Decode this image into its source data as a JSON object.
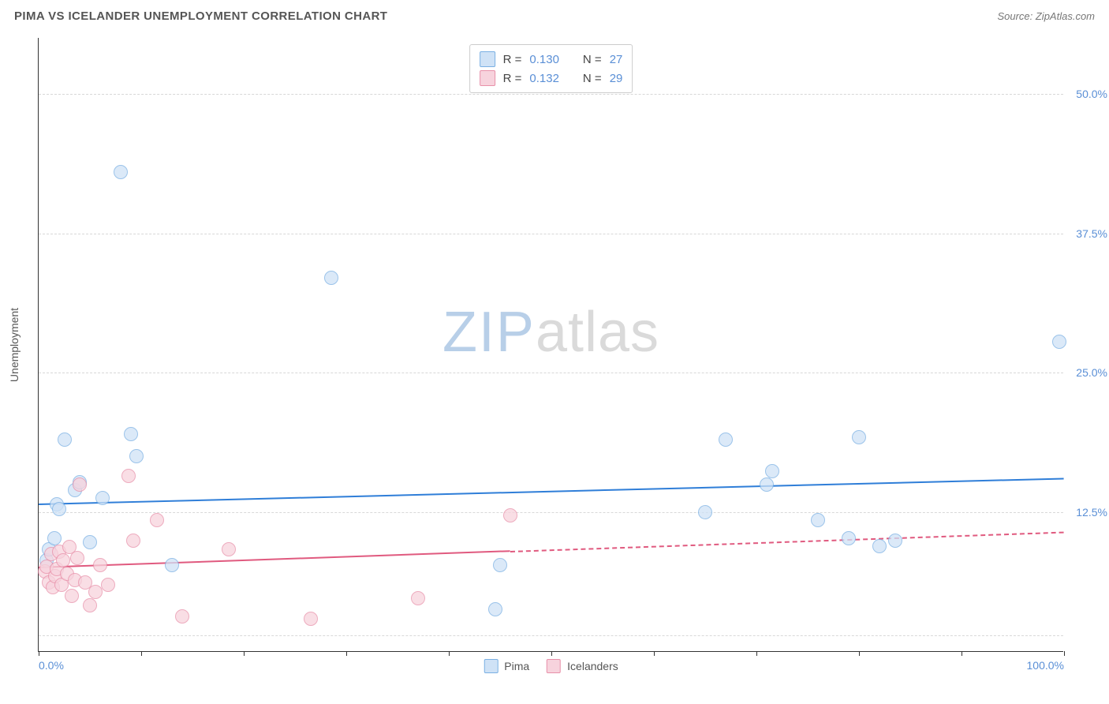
{
  "header": {
    "title": "PIMA VS ICELANDER UNEMPLOYMENT CORRELATION CHART",
    "source": "Source: ZipAtlas.com"
  },
  "watermark": {
    "zip": "ZIP",
    "atlas": "atlas"
  },
  "chart": {
    "type": "scatter",
    "ylabel": "Unemployment",
    "background_color": "#ffffff",
    "grid_color": "#d8d8d8",
    "axis_color": "#333333",
    "label_color": "#5a8fd6",
    "xlim": [
      0,
      100
    ],
    "ylim": [
      0,
      55
    ],
    "xticks": [
      0,
      10,
      20,
      30,
      40,
      50,
      60,
      70,
      80,
      90,
      100
    ],
    "xtick_labels": {
      "0": "0.0%",
      "100": "100.0%"
    },
    "yticks": [
      12.5,
      25.0,
      37.5,
      50.0
    ],
    "ytick_labels": [
      "12.5%",
      "25.0%",
      "37.5%",
      "50.0%"
    ],
    "ygrid_extra": [
      1.5
    ],
    "marker_radius": 9,
    "marker_border_width": 1.2,
    "series": {
      "pima": {
        "label": "Pima",
        "fill": "#cfe2f6",
        "stroke": "#7ab0e3",
        "fill_opacity": 0.75,
        "points": [
          [
            0.8,
            8.2
          ],
          [
            1.0,
            9.2
          ],
          [
            1.5,
            10.2
          ],
          [
            1.8,
            13.2
          ],
          [
            2.0,
            12.8
          ],
          [
            2.5,
            19.0
          ],
          [
            3.5,
            14.5
          ],
          [
            4.0,
            15.2
          ],
          [
            5.0,
            9.8
          ],
          [
            6.2,
            13.8
          ],
          [
            8.0,
            43.0
          ],
          [
            9.5,
            17.5
          ],
          [
            9.0,
            19.5
          ],
          [
            13.0,
            7.8
          ],
          [
            28.5,
            33.5
          ],
          [
            44.5,
            3.8
          ],
          [
            45.0,
            7.8
          ],
          [
            65.0,
            12.5
          ],
          [
            67.0,
            19.0
          ],
          [
            71.0,
            15.0
          ],
          [
            71.5,
            16.2
          ],
          [
            76.0,
            11.8
          ],
          [
            79.0,
            10.2
          ],
          [
            80.0,
            19.2
          ],
          [
            82.0,
            9.5
          ],
          [
            83.5,
            10.0
          ],
          [
            99.5,
            27.8
          ]
        ],
        "trend": {
          "x1": 0,
          "y1": 13.3,
          "x2": 100,
          "y2": 15.6,
          "color": "#2f7ed8",
          "width": 2.2,
          "solid_until_x": 100
        }
      },
      "icelanders": {
        "label": "Icelanders",
        "fill": "#f7d3dd",
        "stroke": "#e890a9",
        "fill_opacity": 0.75,
        "points": [
          [
            0.6,
            7.2
          ],
          [
            0.8,
            7.6
          ],
          [
            1.0,
            6.2
          ],
          [
            1.2,
            8.8
          ],
          [
            1.4,
            5.8
          ],
          [
            1.6,
            6.8
          ],
          [
            1.8,
            7.4
          ],
          [
            2.0,
            9.0
          ],
          [
            2.2,
            6.0
          ],
          [
            2.4,
            8.2
          ],
          [
            2.8,
            7.0
          ],
          [
            3.0,
            9.4
          ],
          [
            3.2,
            5.0
          ],
          [
            3.5,
            6.4
          ],
          [
            3.8,
            8.4
          ],
          [
            4.5,
            6.2
          ],
          [
            4.0,
            15.0
          ],
          [
            5.0,
            4.2
          ],
          [
            5.5,
            5.4
          ],
          [
            6.0,
            7.8
          ],
          [
            6.8,
            6.0
          ],
          [
            8.8,
            15.8
          ],
          [
            9.2,
            10.0
          ],
          [
            11.5,
            11.8
          ],
          [
            14.0,
            3.2
          ],
          [
            18.5,
            9.2
          ],
          [
            26.5,
            3.0
          ],
          [
            37.0,
            4.8
          ],
          [
            46.0,
            12.2
          ]
        ],
        "trend": {
          "x1": 0,
          "y1": 7.6,
          "x2": 100,
          "y2": 10.8,
          "color": "#e05a7f",
          "width": 2,
          "solid_until_x": 46
        }
      }
    }
  },
  "legend_top": {
    "rows": [
      {
        "swatch_fill": "#cfe2f6",
        "swatch_stroke": "#7ab0e3",
        "r_label": "R =",
        "r_value": "0.130",
        "n_label": "N =",
        "n_value": "27"
      },
      {
        "swatch_fill": "#f7d3dd",
        "swatch_stroke": "#e890a9",
        "r_label": "R =",
        "r_value": "0.132",
        "n_label": "N =",
        "n_value": "29"
      }
    ]
  },
  "legend_bottom": {
    "items": [
      {
        "swatch_fill": "#cfe2f6",
        "swatch_stroke": "#7ab0e3",
        "label": "Pima"
      },
      {
        "swatch_fill": "#f7d3dd",
        "swatch_stroke": "#e890a9",
        "label": "Icelanders"
      }
    ]
  }
}
